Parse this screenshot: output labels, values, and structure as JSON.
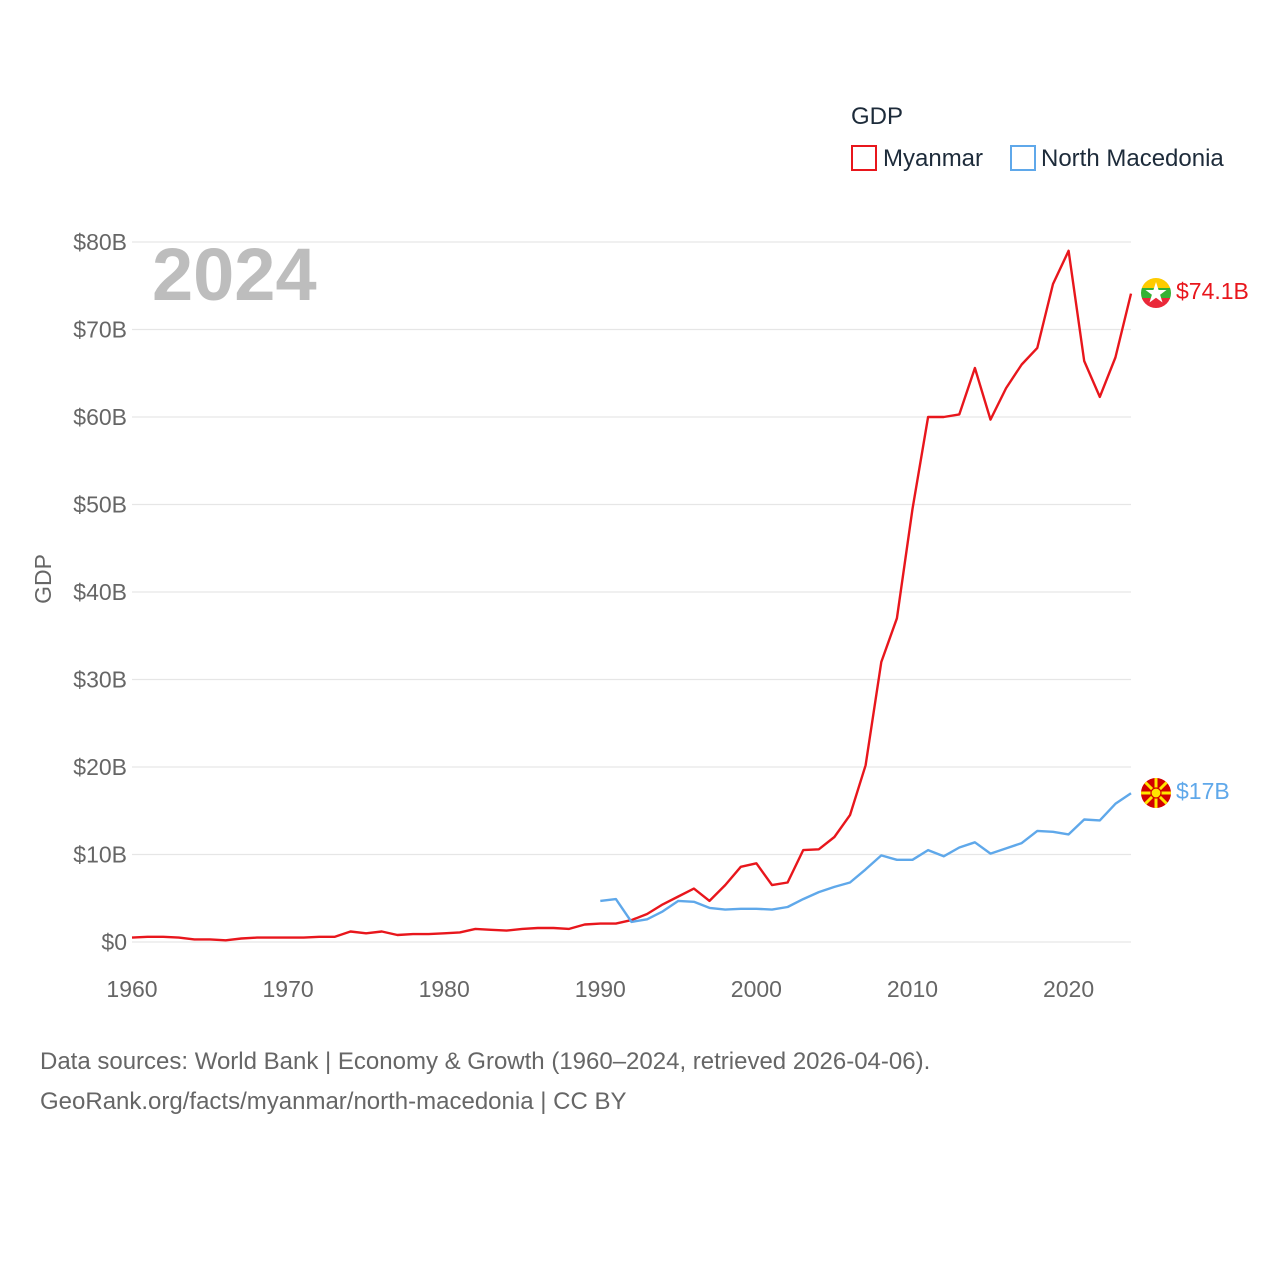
{
  "chart_data": {
    "type": "line",
    "title": "",
    "ylabel": "GDP",
    "xlabel": "",
    "year_label": "2024",
    "legend_title": "GDP",
    "legend_position": "top-right",
    "xlim": [
      1960,
      2024
    ],
    "ylim": [
      0,
      80
    ],
    "x_ticks": [
      1960,
      1970,
      1980,
      1990,
      2000,
      2010,
      2020
    ],
    "x_tick_labels": [
      "1960",
      "1970",
      "1980",
      "1990",
      "2000",
      "2010",
      "2020"
    ],
    "y_ticks": [
      0,
      10,
      20,
      30,
      40,
      50,
      60,
      70,
      80
    ],
    "y_tick_labels": [
      "$0",
      "$10B",
      "$20B",
      "$30B",
      "$40B",
      "$50B",
      "$60B",
      "$70B",
      "$80B"
    ],
    "unit": "billion USD",
    "series": [
      {
        "name": "Myanmar",
        "color": "#e8161c",
        "flag_icon": "myanmar-flag-icon",
        "end_label": "$74.1B",
        "x": [
          1960,
          1961,
          1962,
          1963,
          1964,
          1965,
          1966,
          1967,
          1968,
          1969,
          1970,
          1971,
          1972,
          1973,
          1974,
          1975,
          1976,
          1977,
          1978,
          1979,
          1980,
          1981,
          1982,
          1983,
          1984,
          1985,
          1986,
          1987,
          1988,
          1989,
          1990,
          1991,
          1992,
          1993,
          1994,
          1995,
          1996,
          1997,
          1998,
          1999,
          2000,
          2001,
          2002,
          2003,
          2004,
          2005,
          2006,
          2007,
          2008,
          2009,
          2010,
          2011,
          2012,
          2013,
          2014,
          2015,
          2016,
          2017,
          2018,
          2019,
          2020,
          2021,
          2022,
          2023,
          2024
        ],
        "values": [
          0.5,
          0.6,
          0.6,
          0.5,
          0.3,
          0.3,
          0.2,
          0.4,
          0.5,
          0.5,
          0.5,
          0.5,
          0.6,
          0.6,
          1.2,
          1.0,
          1.2,
          0.8,
          0.9,
          0.9,
          1.0,
          1.1,
          1.5,
          1.4,
          1.3,
          1.5,
          1.6,
          1.6,
          1.5,
          2.0,
          2.1,
          2.1,
          2.5,
          3.2,
          4.3,
          5.2,
          6.1,
          4.7,
          6.5,
          8.6,
          9.0,
          6.5,
          6.8,
          10.5,
          10.6,
          12.0,
          14.5,
          20.2,
          32.0,
          37.0,
          49.5,
          60.0,
          60.0,
          60.3,
          65.6,
          59.7,
          63.3,
          66.0,
          67.9,
          75.2,
          79.0,
          66.4,
          62.3,
          66.8,
          74.1
        ]
      },
      {
        "name": "North Macedonia",
        "color": "#5fa8ea",
        "flag_icon": "north-macedonia-flag-icon",
        "end_label": "$17B",
        "x": [
          1990,
          1991,
          1992,
          1993,
          1994,
          1995,
          1996,
          1997,
          1998,
          1999,
          2000,
          2001,
          2002,
          2003,
          2004,
          2005,
          2006,
          2007,
          2008,
          2009,
          2010,
          2011,
          2012,
          2013,
          2014,
          2015,
          2016,
          2017,
          2018,
          2019,
          2020,
          2021,
          2022,
          2023,
          2024
        ],
        "values": [
          4.7,
          4.9,
          2.3,
          2.6,
          3.5,
          4.7,
          4.6,
          3.9,
          3.7,
          3.8,
          3.8,
          3.7,
          4.0,
          4.9,
          5.7,
          6.3,
          6.8,
          8.3,
          9.9,
          9.4,
          9.4,
          10.5,
          9.8,
          10.8,
          11.4,
          10.1,
          10.7,
          11.3,
          12.7,
          12.6,
          12.3,
          14.0,
          13.9,
          15.8,
          17.0
        ]
      }
    ]
  },
  "source": {
    "line1": "Data sources: World Bank | Economy & Growth (1960–2024, retrieved 2026-04-06).",
    "line2": "GeoRank.org/facts/myanmar/north-macedonia | CC BY"
  }
}
